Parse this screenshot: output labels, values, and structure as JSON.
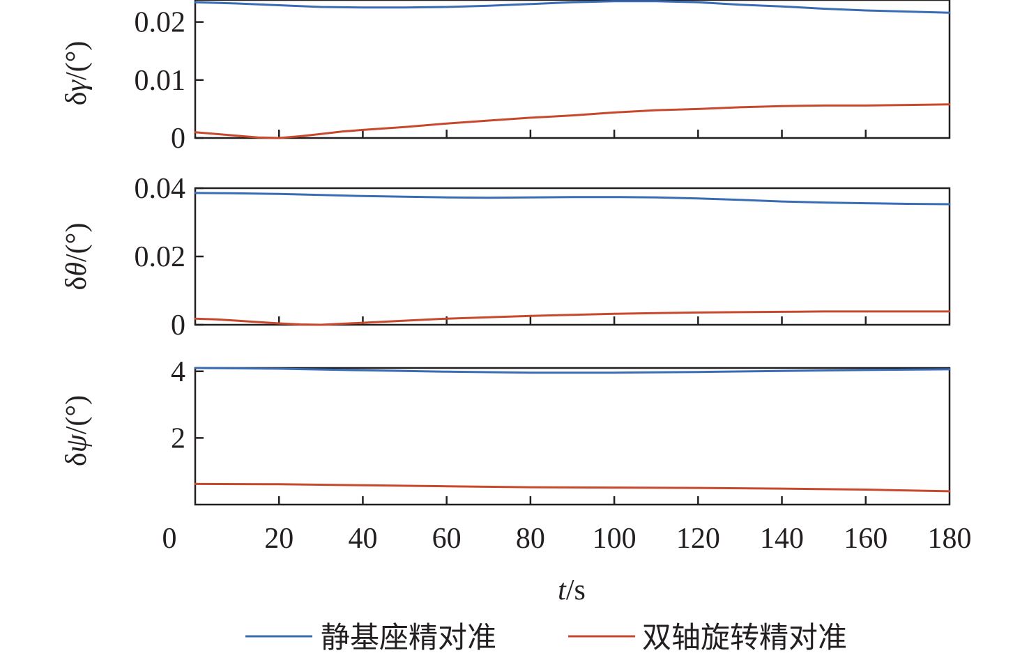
{
  "chart_data": {
    "type": "line",
    "xlabel": {
      "italic": "t",
      "rest": "/s"
    },
    "x_ticks": [
      "0",
      "20",
      "40",
      "60",
      "80",
      "100",
      "120",
      "140",
      "160",
      "180"
    ],
    "xlim": [
      0,
      180
    ],
    "colors": {
      "blue": "#3a6cb4",
      "red": "#c8482d",
      "axis": "#231f20"
    },
    "legend": [
      {
        "label": "静基座精对准",
        "color": "#3a6cb4"
      },
      {
        "label": "双轴旋转精对准",
        "color": "#c8482d"
      }
    ],
    "panels": [
      {
        "ylabel": {
          "prefix": "δ",
          "sym": "γ",
          "suffix": "/(°)"
        },
        "ylim": [
          0,
          0.0238
        ],
        "y_ticks": [
          {
            "v": 0,
            "label": "0"
          },
          {
            "v": 0.01,
            "label": "0.01"
          },
          {
            "v": 0.02,
            "label": "0.02"
          }
        ],
        "series": [
          {
            "color": "#3a6cb4",
            "x": [
              0,
              10,
              20,
              30,
              40,
              50,
              60,
              70,
              80,
              90,
              100,
              110,
              120,
              130,
              140,
              150,
              160,
              170,
              180
            ],
            "y": [
              0.0234,
              0.0232,
              0.0229,
              0.0226,
              0.0225,
              0.0225,
              0.0226,
              0.0228,
              0.0231,
              0.0234,
              0.0236,
              0.0236,
              0.0234,
              0.023,
              0.0227,
              0.0223,
              0.022,
              0.0218,
              0.0216
            ]
          },
          {
            "color": "#c8482d",
            "x": [
              0,
              5,
              10,
              15,
              20,
              25,
              30,
              35,
              40,
              50,
              60,
              70,
              80,
              90,
              100,
              110,
              120,
              130,
              140,
              150,
              160,
              170,
              180
            ],
            "y": [
              0.001,
              0.0007,
              0.0004,
              0.0001,
              0.0,
              0.0003,
              0.0007,
              0.0011,
              0.0014,
              0.0019,
              0.0025,
              0.003,
              0.0035,
              0.0039,
              0.0044,
              0.0048,
              0.005,
              0.0053,
              0.0055,
              0.0056,
              0.0056,
              0.0057,
              0.0058
            ]
          }
        ]
      },
      {
        "ylabel": {
          "prefix": "δ",
          "sym": "θ",
          "suffix": "/(°)"
        },
        "ylim": [
          0,
          0.04
        ],
        "y_ticks": [
          {
            "v": 0,
            "label": "0"
          },
          {
            "v": 0.02,
            "label": "0.02"
          },
          {
            "v": 0.04,
            "label": "0.04"
          }
        ],
        "series": [
          {
            "color": "#3a6cb4",
            "x": [
              0,
              10,
              20,
              30,
              40,
              50,
              60,
              70,
              80,
              90,
              100,
              110,
              120,
              130,
              140,
              150,
              160,
              170,
              180
            ],
            "y": [
              0.0386,
              0.0385,
              0.0383,
              0.038,
              0.0377,
              0.0375,
              0.0373,
              0.0372,
              0.0373,
              0.0374,
              0.0374,
              0.0373,
              0.037,
              0.0366,
              0.0361,
              0.0358,
              0.0356,
              0.0354,
              0.0353
            ]
          },
          {
            "color": "#c8482d",
            "x": [
              0,
              5,
              10,
              15,
              20,
              25,
              30,
              40,
              50,
              60,
              70,
              80,
              90,
              100,
              110,
              120,
              130,
              140,
              150,
              160,
              170,
              180
            ],
            "y": [
              0.0018,
              0.0016,
              0.0012,
              0.0008,
              0.0004,
              0.0001,
              0.0,
              0.0006,
              0.0012,
              0.0018,
              0.0022,
              0.0026,
              0.0029,
              0.0032,
              0.0034,
              0.0036,
              0.0037,
              0.0038,
              0.0039,
              0.0039,
              0.0039,
              0.0039
            ]
          }
        ]
      },
      {
        "ylabel": {
          "prefix": "δ",
          "sym": "ψ",
          "suffix": "/(°)"
        },
        "ylim": [
          0,
          4.1
        ],
        "y_ticks": [
          {
            "v": 2,
            "label": "2"
          },
          {
            "v": 4,
            "label": "4"
          }
        ],
        "series": [
          {
            "color": "#3a6cb4",
            "x": [
              0,
              20,
              40,
              60,
              80,
              100,
              120,
              140,
              160,
              180
            ],
            "y": [
              4.1,
              4.08,
              4.03,
              3.99,
              3.96,
              3.96,
              3.98,
              4.01,
              4.04,
              4.06
            ]
          },
          {
            "color": "#c8482d",
            "x": [
              0,
              20,
              40,
              60,
              80,
              100,
              120,
              140,
              160,
              180
            ],
            "y": [
              0.62,
              0.61,
              0.58,
              0.55,
              0.52,
              0.51,
              0.5,
              0.48,
              0.45,
              0.4
            ]
          }
        ]
      }
    ]
  }
}
